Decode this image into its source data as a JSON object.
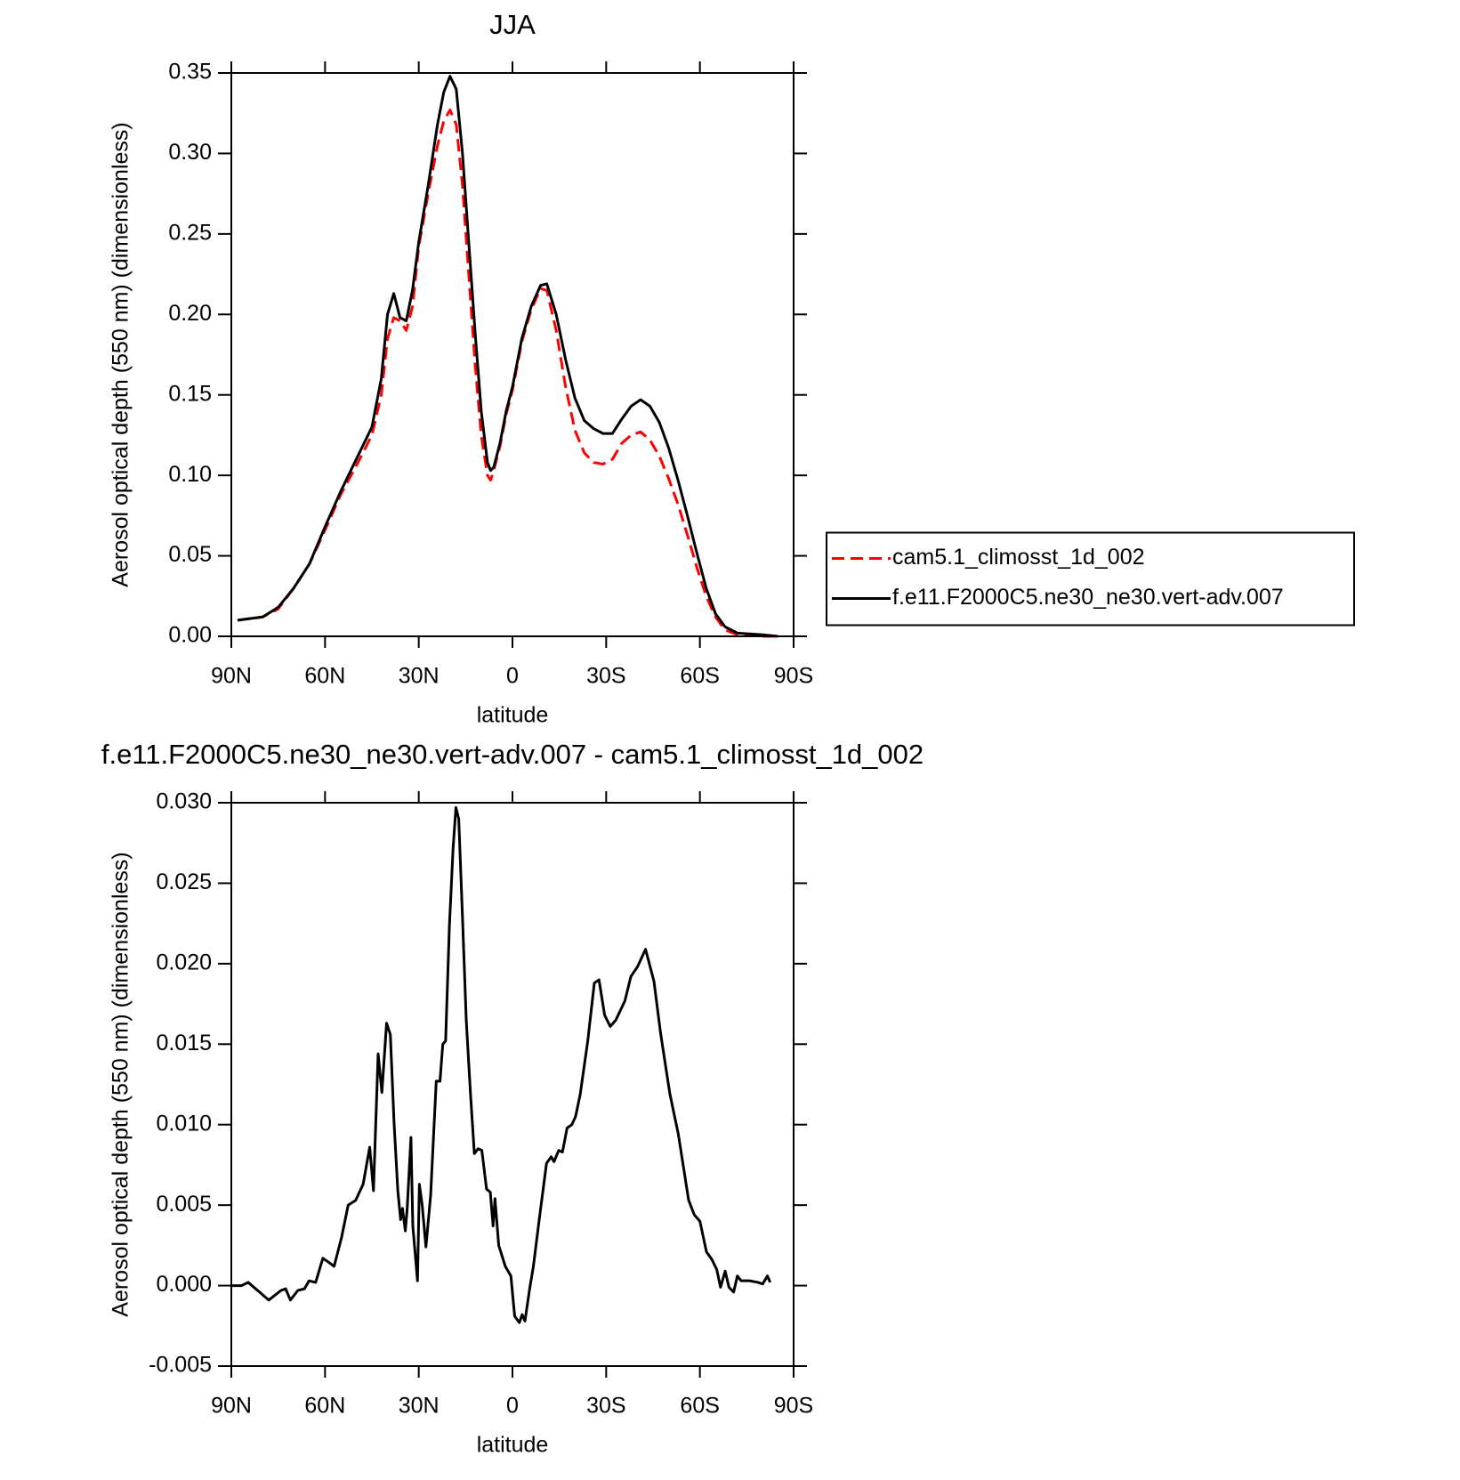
{
  "chart_data": [
    {
      "type": "line",
      "title": "JJA",
      "xlabel": "latitude",
      "ylabel": "Aerosol optical depth (550 nm) (dimensionless)",
      "x": [
        88,
        80,
        75,
        70,
        65,
        60,
        55,
        50,
        45,
        42,
        40,
        38,
        36,
        34,
        32,
        30,
        27,
        24,
        22,
        20,
        18,
        16,
        14,
        12,
        10,
        8,
        7,
        6,
        4,
        2,
        0,
        -3,
        -6,
        -9,
        -11,
        -14,
        -17,
        -20,
        -23,
        -26,
        -29,
        -32,
        -35,
        -38,
        -41,
        -44,
        -47,
        -50,
        -53,
        -56,
        -59,
        -62,
        -65,
        -68,
        -72,
        -80,
        -85
      ],
      "xlim": [
        90,
        -90
      ],
      "xticks": [
        {
          "value": 90,
          "label": "90N"
        },
        {
          "value": 60,
          "label": "60N"
        },
        {
          "value": 30,
          "label": "30N"
        },
        0,
        {
          "value": -30,
          "label": "30S"
        },
        {
          "value": -60,
          "label": "60S"
        },
        {
          "value": -90,
          "label": "90S"
        }
      ],
      "ylim": [
        0,
        0.35
      ],
      "yticks": [
        {
          "value": 0,
          "label": "0.00"
        },
        {
          "value": 0.05,
          "label": "0.05"
        },
        {
          "value": 0.1,
          "label": "0.10"
        },
        {
          "value": 0.15,
          "label": "0.15"
        },
        {
          "value": 0.2,
          "label": "0.20"
        },
        {
          "value": 0.25,
          "label": "0.25"
        },
        {
          "value": 0.3,
          "label": "0.30"
        },
        0.35
      ],
      "legend": "right",
      "series": [
        {
          "name": "cam5.1_climosst_1d_002",
          "color": "#ff0000",
          "dash": "dashed",
          "values": [
            0.01,
            0.012,
            0.017,
            0.03,
            0.045,
            0.066,
            0.088,
            0.106,
            0.125,
            0.15,
            0.185,
            0.198,
            0.196,
            0.19,
            0.205,
            0.242,
            0.275,
            0.305,
            0.32,
            0.327,
            0.318,
            0.28,
            0.225,
            0.17,
            0.125,
            0.1,
            0.097,
            0.103,
            0.118,
            0.138,
            0.153,
            0.183,
            0.203,
            0.216,
            0.215,
            0.19,
            0.155,
            0.128,
            0.114,
            0.108,
            0.107,
            0.11,
            0.12,
            0.125,
            0.127,
            0.122,
            0.112,
            0.098,
            0.082,
            0.063,
            0.043,
            0.025,
            0.012,
            0.004,
            0.001,
            0.0,
            0.0
          ]
        },
        {
          "name": "f.e11.F2000C5.ne30_ne30.vert-adv.007",
          "color": "#000000",
          "dash": "solid",
          "values": [
            0.01,
            0.012,
            0.018,
            0.03,
            0.045,
            0.068,
            0.09,
            0.11,
            0.13,
            0.16,
            0.2,
            0.213,
            0.198,
            0.196,
            0.215,
            0.245,
            0.28,
            0.318,
            0.338,
            0.348,
            0.34,
            0.3,
            0.245,
            0.19,
            0.14,
            0.108,
            0.103,
            0.105,
            0.12,
            0.14,
            0.155,
            0.185,
            0.205,
            0.218,
            0.219,
            0.2,
            0.172,
            0.148,
            0.134,
            0.129,
            0.126,
            0.126,
            0.135,
            0.143,
            0.147,
            0.143,
            0.133,
            0.117,
            0.097,
            0.075,
            0.052,
            0.03,
            0.014,
            0.006,
            0.002,
            0.001,
            0.0
          ]
        }
      ]
    },
    {
      "type": "line",
      "title": "f.e11.F2000C5.ne30_ne30.vert-adv.007 - cam5.1_climosst_1d_002",
      "xlabel": "latitude",
      "ylabel": "Aerosol optical depth (550 nm) (dimensionless)",
      "x": [
        90,
        86.7,
        84.6,
        81.6,
        78,
        74.1,
        72.6,
        71.1,
        68.7,
        66.6,
        65.1,
        63,
        60.7,
        59.2,
        57.1,
        54.7,
        52.6,
        50.2,
        47.8,
        45.7,
        44.5,
        43,
        41.8,
        40.3,
        39.1,
        37.9,
        36.7,
        35.8,
        35.2,
        34.3,
        33.7,
        32.5,
        31.9,
        30.4,
        29.8,
        28.9,
        27.7,
        26.2,
        24.4,
        23.2,
        22.3,
        21.4,
        20.2,
        19,
        18.1,
        17.2,
        16,
        14.8,
        13.4,
        12.2,
        11,
        9.8,
        8.3,
        7.1,
        6.2,
        5.6,
        4.4,
        2.3,
        0.5,
        -0.7,
        -2.2,
        -3.1,
        -4,
        -5.5,
        -6.7,
        -8.5,
        -10.9,
        -12.4,
        -13.3,
        -14.8,
        -16,
        -17.5,
        -19,
        -20.2,
        -21.7,
        -24.1,
        -26.2,
        -27.7,
        -29.5,
        -31.3,
        -33.1,
        -36,
        -37.9,
        -40,
        -42.6,
        -45.3,
        -47.4,
        -50.4,
        -53.1,
        -56.4,
        -58.2,
        -60,
        -62.1,
        -63.9,
        -65.4,
        -66.6,
        -68.1,
        -69.3,
        -70.8,
        -72,
        -73.2,
        -75.9,
        -78.6,
        -80.1,
        -81.6,
        -82.5
      ],
      "xlim": [
        90,
        -90
      ],
      "xticks": [
        {
          "value": 90,
          "label": "90N"
        },
        {
          "value": 60,
          "label": "60N"
        },
        {
          "value": 30,
          "label": "30N"
        },
        0,
        {
          "value": -30,
          "label": "30S"
        },
        {
          "value": -60,
          "label": "60S"
        },
        {
          "value": -90,
          "label": "90S"
        }
      ],
      "ylim": [
        -0.005,
        0.03
      ],
      "yticks": [
        -0.005,
        {
          "value": 0,
          "label": "0.000"
        },
        0.005,
        {
          "value": 0.01,
          "label": "0.010"
        },
        0.015,
        {
          "value": 0.02,
          "label": "0.020"
        },
        0.025,
        {
          "value": 0.03,
          "label": "0.030"
        }
      ],
      "series": [
        {
          "color": "#000000",
          "dash": "solid",
          "values": [
            0,
            0,
            0.0002,
            -0.0003,
            -0.0009,
            -0.0003,
            -0.0002,
            -0.0009,
            -0.0003,
            -0.0002,
            0.0003,
            0.0002,
            0.0017,
            0.0015,
            0.0012,
            0.003,
            0.005,
            0.0053,
            0.0063,
            0.0086,
            0.0059,
            0.0144,
            0.012,
            0.0163,
            0.0156,
            0.0101,
            0.0059,
            0.0041,
            0.0048,
            0.0034,
            0.0048,
            0.0092,
            0.0037,
            0.0003,
            0.0063,
            0.005,
            0.0024,
            0.0056,
            0.0127,
            0.0127,
            0.015,
            0.0152,
            0.0223,
            0.0272,
            0.0297,
            0.029,
            0.0229,
            0.0165,
            0.0118,
            0.0082,
            0.0085,
            0.0084,
            0.006,
            0.0058,
            0.0037,
            0.0054,
            0.0025,
            0.0012,
            0.0006,
            -0.0019,
            -0.0023,
            -0.0018,
            -0.0022,
            -0.0002,
            0.0012,
            0.004,
            0.0076,
            0.008,
            0.0077,
            0.0084,
            0.0083,
            0.0098,
            0.01,
            0.0105,
            0.0119,
            0.0152,
            0.0188,
            0.019,
            0.0168,
            0.0161,
            0.0165,
            0.0177,
            0.0192,
            0.0198,
            0.0209,
            0.0189,
            0.0157,
            0.0119,
            0.0094,
            0.0053,
            0.0044,
            0.004,
            0.0021,
            0.0016,
            0.001,
            -0.0001,
            0.0009,
            -0.0001,
            -0.0004,
            0.0006,
            0.0003,
            0.0003,
            0.0002,
            0.0001,
            0.0006,
            0.0002
          ]
        }
      ]
    }
  ]
}
